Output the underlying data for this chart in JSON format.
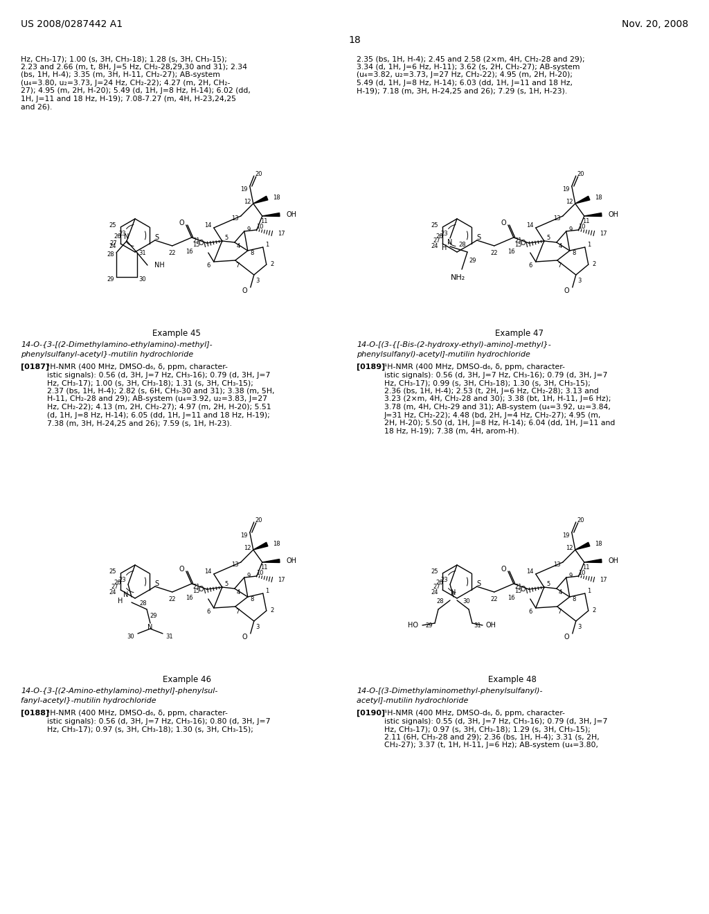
{
  "page_header_left": "US 2008/0287442 A1",
  "page_header_right": "Nov. 20, 2008",
  "page_number": "18",
  "background_color": "#ffffff",
  "top_text_left": "Hz, CH₃-17); 1.00 (s, 3H, CH₃-18); 1.28 (s, 3H, CH₃-15);\n2.23 and 2.66 (m, t, 8H, J=5 Hz, CH₂-28,29,30 and 31); 2.34\n(bs, 1H, H-4); 3.35 (m, 3H, H-11, CH₂-27); AB-system\n(u₄=3.80, u₂=3.73, J=24 Hz, CH₂-22); 4.27 (m, 2H, CH₂-\n27); 4.95 (m, 2H, H-20); 5.49 (d, 1H, J=8 Hz, H-14); 6.02 (dd,\n1H, J=11 and 18 Hz, H-19); 7.08-7.27 (m, 4H, H-23,24,25\nand 26).",
  "top_text_right": "2.35 (bs, 1H, H-4); 2.45 and 2.58 (2×m, 4H, CH₂-28 and 29);\n3.34 (d, 1H, J=6 Hz, H-11); 3.62 (s, 2H, CH₂-27); AB-system\n(u₄=3.82, u₂=3.73, J=27 Hz, CH₂-22); 4.95 (m, 2H, H-20);\n5.49 (d, 1H, J=8 Hz, H-14); 6.03 (dd, 1H, J=11 and 18 Hz,\nH-19); 7.18 (m, 3H, H-24,25 and 26); 7.29 (s, 1H, H-23).",
  "ex45_label": "Example 45",
  "ex45_name1": "14-O-{3-[(2-Dimethylamino-ethylamino)-methyl]-",
  "ex45_name2": "phenylsulfanyl-acetyl}-mutilin hydrochloride",
  "ex45_ref": "[0187]",
  "ex45_nmr": "¹H-NMR (400 MHz, DMSO-d₆, δ, ppm, character-\nistic signals): 0.56 (d, 3H, J=7 Hz, CH₃-16); 0.79 (d, 3H, J=7\nHz, CH₃-17); 1.00 (s, 3H, CH₃-18); 1.31 (s, 3H, CH₃-15);\n2.37 (bs, 1H, H-4); 2.82 (s, 6H, CH₃-30 and 31); 3.38 (m, 5H,\nH-11, CH₂-28 and 29); AB-system (u₄=3.92, u₂=3.83, J=27\nHz, CH₂-22); 4.13 (m, 2H, CH₂-27); 4.97 (m, 2H, H-20); 5.51\n(d, 1H, J=8 Hz, H-14); 6.05 (dd, 1H, J=11 and 18 Hz, H-19);\n7.38 (m, 3H, H-24,25 and 26); 7.59 (s, 1H, H-23).",
  "ex46_label": "Example 46",
  "ex46_name1": "14-O-{3-[(2-Amino-ethylamino)-methyl]-phenylsul-",
  "ex46_name2": "fanyl-acetyl}-mutilin hydrochloride",
  "ex46_ref": "[0188]",
  "ex46_nmr": "¹H-NMR (400 MHz, DMSO-d₆, δ, ppm, character-\nistic signals): 0.56 (d, 3H, J=7 Hz, CH₃-16); 0.80 (d, 3H, J=7\nHz, CH₃-17); 0.97 (s, 3H, CH₃-18); 1.30 (s, 3H, CH₃-15);",
  "ex47_label": "Example 47",
  "ex47_name1": "14-O-[(3-{[-Bis-(2-hydroxy-ethyl)-amino]-methyl}-",
  "ex47_name2": "phenylsulfanyl)-acetyl]-mutilin hydrochloride",
  "ex47_ref": "[0189]",
  "ex47_nmr": "¹H-NMR (400 MHz, DMSO-d₆, δ, ppm, character-\nistic signals): 0.56 (d, 3H, J=7 Hz, CH₃-16); 0.79 (d, 3H, J=7\nHz, CH₃-17); 0.99 (s, 3H, CH₃-18); 1.30 (s, 3H, CH₃-15);\n2.36 (bs, 1H, H-4); 2.53 (t, 2H, J=6 Hz, CH₂-28); 3.13 and\n3.23 (2×m, 4H, CH₂-28 and 30); 3.38 (bt, 1H, H-11, J=6 Hz);\n3.78 (m, 4H, CH₂-29 and 31); AB-system (u₄=3.92, u₂=3.84,\nJ=31 Hz, CH₂-22); 4.48 (bd, 2H, J=4 Hz, CH₂-27); 4.95 (m,\n2H, H-20); 5.50 (d, 1H, J=8 Hz, H-14); 6.04 (dd, 1H, J=11 and\n18 Hz, H-19); 7.38 (m, 4H, arom-H).",
  "ex48_label": "Example 48",
  "ex48_name1": "14-O-[(3-Dimethylaminomethyl-phenylsulfanyl)-",
  "ex48_name2": "acetyl]-mutilin hydrochloride",
  "ex48_ref": "[0190]",
  "ex48_nmr": "¹H-NMR (400 MHz, DMSO-d₆, δ, ppm, character-\nistic signals): 0.55 (d, 3H, J=7 Hz, CH₃-16); 0.79 (d, 3H, J=7\nHz, CH₃-17); 0.97 (s, 3H, CH₃-18); 1.29 (s, 3H, CH₃-15);\n2.11 (6H, CH₃-28 and 29); 2.36 (bs, 1H, H-4); 3.31 (s, 2H,\nCH₂-27); 3.37 (t, 1H, H-11, J=6 Hz); AB-system (u₄=3.80,"
}
